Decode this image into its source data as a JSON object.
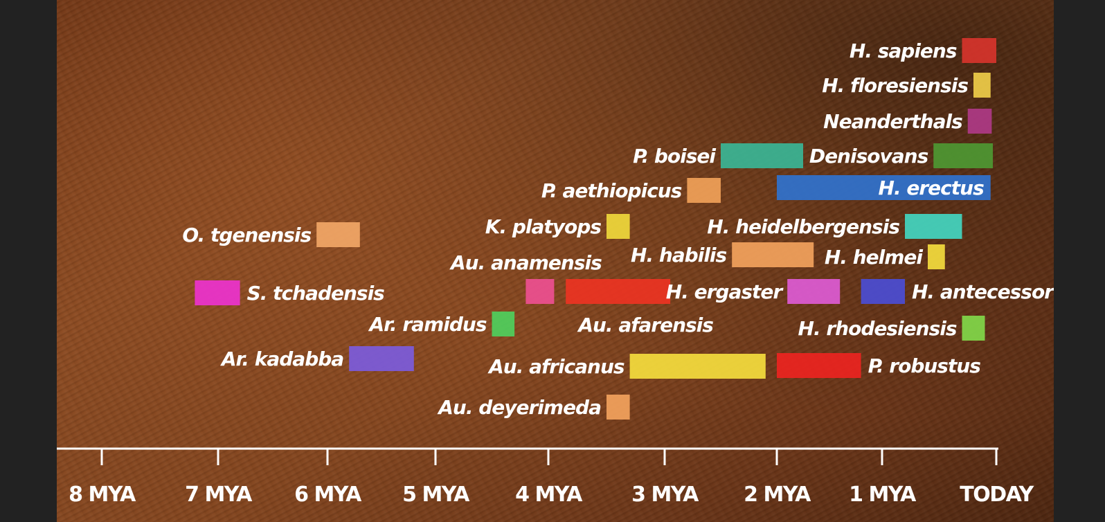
{
  "chart_data": {
    "type": "bar",
    "subtype": "timeline",
    "title": "",
    "xlabel": "",
    "ylabel": "",
    "x_unit": "million years ago",
    "xlim": [
      8.0,
      0.0
    ],
    "ticks": [
      {
        "value": 8,
        "label": "8 MYA"
      },
      {
        "value": 7,
        "label": "7 MYA"
      },
      {
        "value": 6,
        "label": "6 MYA"
      },
      {
        "value": 5,
        "label": "5 MYA"
      },
      {
        "value": 4,
        "label": "4 MYA"
      },
      {
        "value": 3,
        "label": "3 MYA"
      },
      {
        "value": 2,
        "label": "2 MYA"
      },
      {
        "value": 1,
        "label": "1 MYA"
      },
      {
        "value": 0,
        "label": "TODAY"
      }
    ],
    "grid": false,
    "legend": "none",
    "series": [
      {
        "label": "H. sapiens",
        "start": 0.3,
        "end": 0.0,
        "color": "#d9342c",
        "label_side": "left"
      },
      {
        "label": "H. floresiensis",
        "start": 0.2,
        "end": 0.05,
        "color": "#f2d04a",
        "label_side": "left"
      },
      {
        "label": "Neanderthals",
        "start": 0.25,
        "end": 0.04,
        "color": "#b03a88",
        "label_side": "left"
      },
      {
        "label": "P. boisei",
        "start": 2.5,
        "end": 1.75,
        "color": "#39b898",
        "label_side": "left"
      },
      {
        "label": "Denisovans",
        "start": 0.55,
        "end": 0.03,
        "color": "#4e9a33",
        "label_side": "left"
      },
      {
        "label": "P. aethiopicus",
        "start": 2.8,
        "end": 2.5,
        "color": "#f3a35a",
        "label_side": "left"
      },
      {
        "label": "H. erectus",
        "start": 2.0,
        "end": 0.05,
        "color": "#2f73d2",
        "label_side": "inside"
      },
      {
        "label": "K. platyops",
        "start": 3.5,
        "end": 3.3,
        "color": "#f2db3c",
        "label_side": "left"
      },
      {
        "label": "O. tgenensis",
        "start": 6.1,
        "end": 5.7,
        "color": "#f4a868",
        "label_side": "left"
      },
      {
        "label": "H. heidelbergensis",
        "start": 0.8,
        "end": 0.3,
        "color": "#42d9c4",
        "label_side": "left"
      },
      {
        "label": "H. habilis",
        "start": 2.4,
        "end": 1.65,
        "color": "#f5a45e",
        "label_side": "left"
      },
      {
        "label": "Au. anamensis",
        "start": 4.2,
        "end": 3.95,
        "color": "#ef5093",
        "label_side": "above"
      },
      {
        "label": "H. helmei",
        "start": 0.6,
        "end": 0.45,
        "color": "#f7e03e",
        "label_side": "left"
      },
      {
        "label": "S. tchadensis",
        "start": 7.2,
        "end": 6.8,
        "color": "#ee32d2",
        "label_side": "right"
      },
      {
        "label": "Au. afarensis",
        "start": 3.85,
        "end": 2.95,
        "color": "#ee3322",
        "label_side": "below"
      },
      {
        "label": "H. ergaster",
        "start": 1.9,
        "end": 1.4,
        "color": "#e05cd8",
        "label_side": "left"
      },
      {
        "label": "H. antecessor",
        "start": 1.2,
        "end": 0.8,
        "color": "#4a4ed8",
        "label_side": "right"
      },
      {
        "label": "Ar. ramidus",
        "start": 4.5,
        "end": 4.3,
        "color": "#4ed35e",
        "label_side": "left"
      },
      {
        "label": "H. rhodesiensis",
        "start": 0.3,
        "end": 0.1,
        "color": "#82dc4a",
        "label_side": "left"
      },
      {
        "label": "Ar. kadabba",
        "start": 5.8,
        "end": 5.2,
        "color": "#7b5ce0",
        "label_side": "left"
      },
      {
        "label": "Au. africanus",
        "start": 3.3,
        "end": 2.1,
        "color": "#f7e03e",
        "label_side": "left"
      },
      {
        "label": "P. robustus",
        "start": 2.0,
        "end": 1.2,
        "color": "#ee2420",
        "label_side": "right"
      },
      {
        "label": "Au. deyerimeda",
        "start": 3.5,
        "end": 3.3,
        "color": "#f5a45e",
        "label_side": "left"
      }
    ]
  }
}
